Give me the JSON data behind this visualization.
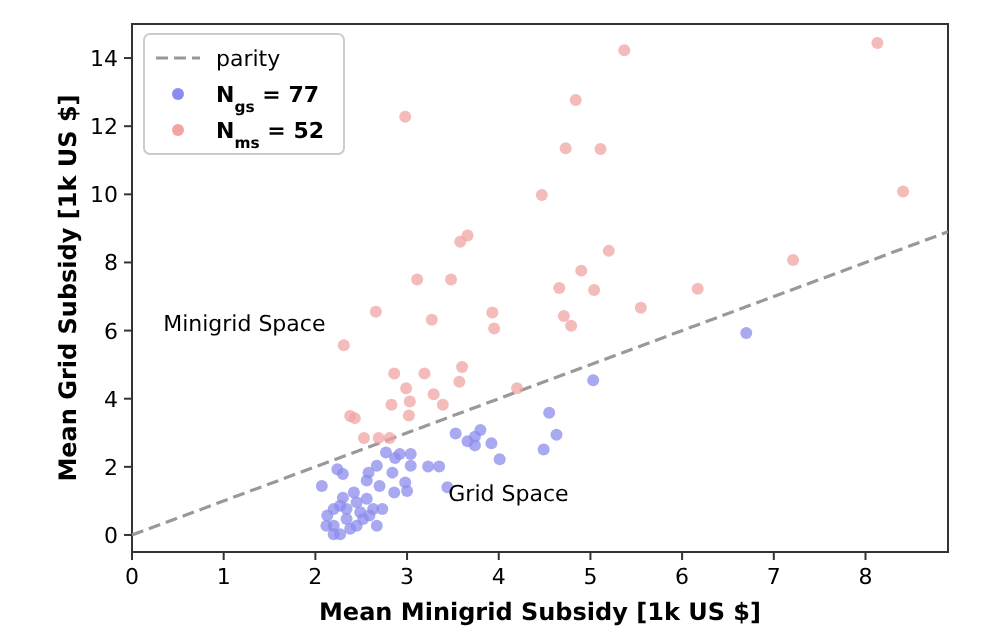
{
  "chart_data": {
    "type": "scatter",
    "xlabel": "Mean Minigrid Subsidy [1k US $]",
    "ylabel": "Mean Grid Subsidy [1k US $]",
    "xlim": [
      0,
      8.9
    ],
    "ylim": [
      -0.5,
      15
    ],
    "xticks": [
      0,
      1,
      2,
      3,
      4,
      5,
      6,
      7,
      8
    ],
    "yticks": [
      0,
      2,
      4,
      6,
      8,
      10,
      12,
      14
    ],
    "grid": false,
    "legend": "top left",
    "annotations": [
      "Minigrid Space",
      "Grid Space"
    ],
    "series": [
      {
        "name": "parity",
        "type": "line",
        "line_style": "dashed",
        "marker": "none",
        "color": "#999999",
        "x": [
          0,
          8.9
        ],
        "values": [
          0,
          8.9
        ]
      },
      {
        "name": "N$_{gs}$ = 77",
        "marker": "circle",
        "color": "#8c8cee",
        "x": [
          6.7,
          5.03,
          4.55,
          4.63,
          4.49,
          3.53,
          3.66,
          3.74,
          3.8,
          3.74,
          3.92,
          4.01,
          2.77,
          2.87,
          2.92,
          3.04,
          3.04,
          3.23,
          3.35,
          2.67,
          2.58,
          2.84,
          2.86,
          3.0,
          2.98,
          2.56,
          2.7,
          3.44,
          2.3,
          2.24,
          2.07,
          2.3,
          2.13,
          2.2,
          2.27,
          2.34,
          2.42,
          2.45,
          2.34,
          2.2,
          2.2,
          2.27,
          2.38,
          2.49,
          2.52,
          2.59,
          2.67,
          2.63,
          2.73,
          2.56,
          2.12,
          2.45
        ],
        "values": [
          5.93,
          4.54,
          3.59,
          2.94,
          2.51,
          2.98,
          2.75,
          2.88,
          3.08,
          2.63,
          2.69,
          2.22,
          2.42,
          2.26,
          2.38,
          2.38,
          2.03,
          2.01,
          2.01,
          2.03,
          1.83,
          1.83,
          1.25,
          1.29,
          1.54,
          1.6,
          1.44,
          1.4,
          1.79,
          1.93,
          1.44,
          1.09,
          0.57,
          0.76,
          0.86,
          0.76,
          1.25,
          0.96,
          0.47,
          0.27,
          0.02,
          0.02,
          0.18,
          0.67,
          0.47,
          0.57,
          0.27,
          0.76,
          0.76,
          1.06,
          0.27,
          0.27
        ]
      },
      {
        "name": "N$_{ms}$ = 52",
        "marker": "circle",
        "color": "#f0a4a4",
        "x": [
          2.98,
          4.47,
          3.66,
          3.58,
          3.11,
          3.48,
          4.66,
          5.37,
          8.13,
          4.84,
          4.73,
          5.11,
          8.41,
          5.2,
          4.9,
          5.04,
          6.17,
          7.21,
          5.55,
          4.71,
          4.79,
          2.66,
          3.27,
          3.93,
          3.95,
          2.31,
          2.86,
          3.19,
          3.6,
          3.57,
          2.99,
          3.29,
          2.83,
          3.03,
          3.39,
          3.02,
          2.38,
          2.43,
          2.53,
          2.69,
          2.81,
          4.2
        ],
        "values": [
          12.28,
          9.98,
          8.79,
          8.61,
          7.5,
          7.5,
          7.25,
          14.23,
          14.44,
          12.77,
          11.35,
          11.33,
          10.08,
          8.34,
          7.76,
          7.19,
          7.23,
          8.07,
          6.67,
          6.43,
          6.14,
          6.55,
          6.32,
          6.53,
          6.06,
          5.57,
          4.74,
          4.74,
          4.93,
          4.5,
          4.31,
          4.13,
          3.82,
          3.92,
          3.82,
          3.51,
          3.49,
          3.43,
          2.85,
          2.85,
          2.85,
          4.31
        ]
      }
    ]
  }
}
